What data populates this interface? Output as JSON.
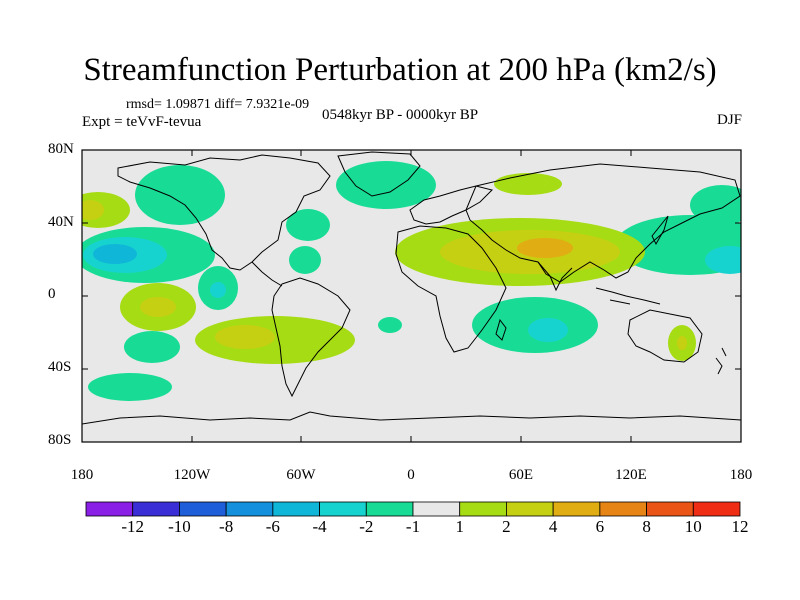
{
  "title": "Streamfunction Perturbation at 200 hPa (km2/s)",
  "stats": "rmsd= 1.09871 diff= 7.9321e-09",
  "expt": "Expt = teVvF-tevua",
  "period": "0548kyr BP - 0000kyr BP",
  "season": "DJF",
  "lat_labels": [
    "80N",
    "40N",
    "0",
    "40S",
    "80S"
  ],
  "lon_labels": [
    "180",
    "120W",
    "60W",
    "0",
    "60E",
    "120E",
    "180"
  ],
  "colorbar": {
    "labels": [
      "-12",
      "-10",
      "-8",
      "-6",
      "-4",
      "-2",
      "-1",
      "1",
      "2",
      "4",
      "6",
      "8",
      "10",
      "12"
    ],
    "colors": [
      "#8a1fe6",
      "#3a2ed6",
      "#1e5fd9",
      "#1490dc",
      "#10b6d8",
      "#17d3cf",
      "#18dc96",
      "#e8e8e8",
      "#a6dc13",
      "#c6d013",
      "#e0ae12",
      "#e68416",
      "#ea5515",
      "#ee2d14"
    ]
  },
  "colors": {
    "ocean": "#e8e8e8",
    "neg1": "#18dc96",
    "neg2": "#17d3cf",
    "neg4": "#10b6d8",
    "pos1": "#a6dc13",
    "pos2": "#c6d013",
    "pos4": "#e0ae12"
  }
}
